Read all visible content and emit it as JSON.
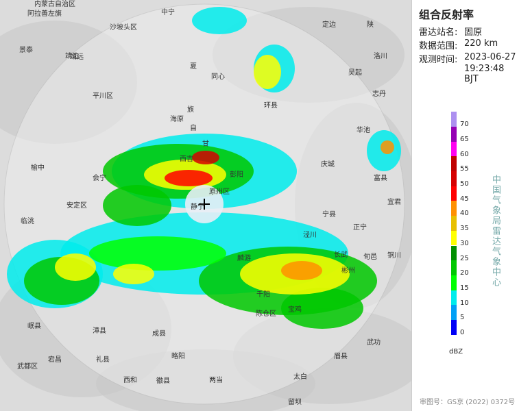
{
  "panel": {
    "title": "组合反射率",
    "rows": [
      {
        "label": "雷达站名:",
        "value": "固原"
      },
      {
        "label": "数据范围:",
        "value": "220 km"
      },
      {
        "label": "观测时间:",
        "value": "2023-06-27"
      }
    ],
    "time": "19:23:48 BJT",
    "legend": {
      "ticks": [
        0,
        5,
        10,
        15,
        20,
        25,
        30,
        35,
        40,
        45,
        50,
        55,
        60,
        65,
        70
      ],
      "colors": [
        "#0000f6",
        "#01a0f6",
        "#00ecec",
        "#01ff00",
        "#00c800",
        "#019000",
        "#ffff00",
        "#e7c000",
        "#ff9000",
        "#ff0000",
        "#d60000",
        "#c00000",
        "#ff00f0",
        "#9600b4",
        "#ad90f0"
      ],
      "unit": "dBZ"
    },
    "credit": "中国气象局雷达气象中心"
  },
  "approval": "审图号：GS京 (2022) 0372号",
  "map_labels": [
    "内蒙古自治区",
    "阿拉善左旗",
    "沙坡头区",
    "中宁",
    "定边",
    "陕",
    "靖边",
    "靖远",
    "景泰",
    "平川区",
    "海原",
    "夏",
    "同心",
    "吴起",
    "环县",
    "志丹",
    "自",
    "族",
    "会宁",
    "西吉",
    "原州区",
    "彭阳",
    "庆城",
    "华池",
    "甘",
    "安定区",
    "榆中",
    "临洮",
    "静宁",
    "泾川",
    "宁县",
    "正宁",
    "长武",
    "彬州",
    "旬邑",
    "麟游",
    "千阳",
    "宝鸡",
    "陈仓区",
    "眉县",
    "武功",
    "太白",
    "岷县",
    "宕昌",
    "武都区",
    "成县",
    "徽县",
    "两当",
    "略阳",
    "留坝",
    "漳县",
    "西和",
    "礼县",
    "洛川",
    "富县",
    "宜君",
    "铜川"
  ]
}
